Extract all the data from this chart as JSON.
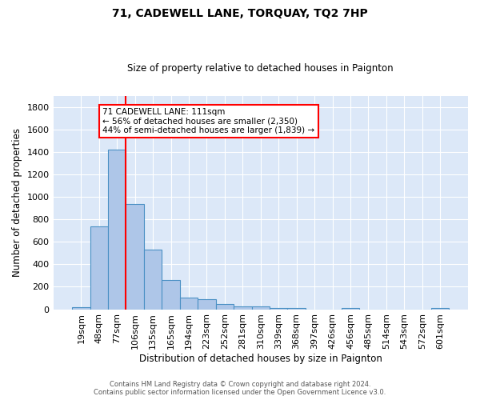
{
  "title": "71, CADEWELL LANE, TORQUAY, TQ2 7HP",
  "subtitle": "Size of property relative to detached houses in Paignton",
  "xlabel": "Distribution of detached houses by size in Paignton",
  "ylabel": "Number of detached properties",
  "footer_line1": "Contains HM Land Registry data © Crown copyright and database right 2024.",
  "footer_line2": "Contains public sector information licensed under the Open Government Licence v3.0.",
  "bin_labels": [
    "19sqm",
    "48sqm",
    "77sqm",
    "106sqm",
    "135sqm",
    "165sqm",
    "194sqm",
    "223sqm",
    "252sqm",
    "281sqm",
    "310sqm",
    "339sqm",
    "368sqm",
    "397sqm",
    "426sqm",
    "456sqm",
    "485sqm",
    "514sqm",
    "543sqm",
    "572sqm",
    "601sqm"
  ],
  "bar_values": [
    20,
    740,
    1420,
    935,
    530,
    262,
    103,
    88,
    48,
    27,
    22,
    8,
    13,
    0,
    0,
    8,
    0,
    0,
    0,
    0,
    12
  ],
  "bar_color": "#aec6e8",
  "bar_edge_color": "#4a90c4",
  "background_color": "#dce8f8",
  "grid_color": "white",
  "vline_color": "red",
  "annotation_text": "71 CADEWELL LANE: 111sqm\n← 56% of detached houses are smaller (2,350)\n44% of semi-detached houses are larger (1,839) →",
  "annotation_box_color": "white",
  "annotation_box_edgecolor": "red",
  "ylim": [
    0,
    1900
  ],
  "yticks": [
    0,
    200,
    400,
    600,
    800,
    1000,
    1200,
    1400,
    1600,
    1800
  ],
  "property_size": 111,
  "bin_width": 29
}
